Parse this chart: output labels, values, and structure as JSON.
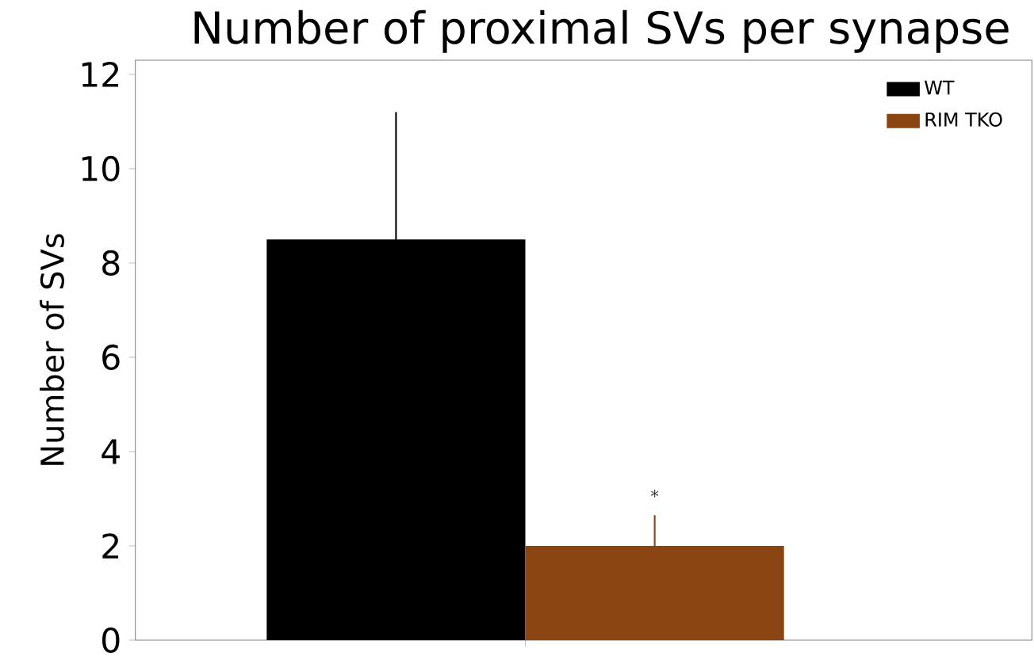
{
  "chart_data": {
    "type": "bar",
    "title": "Number of proximal SVs per synapse",
    "ylabel": "Number of SVs",
    "categories": [
      null
    ],
    "series": [
      {
        "name": "WT",
        "color": "#000000",
        "values": [
          8.5
        ],
        "errors": [
          2.7
        ]
      },
      {
        "name": "RIM TKO",
        "color": "#8b4513",
        "values": [
          2.0
        ],
        "errors": [
          0.65
        ]
      }
    ],
    "ylim": [
      0,
      12.3
    ],
    "yticks": [
      0,
      2,
      4,
      6,
      8,
      10,
      12
    ],
    "annotations": [
      "*"
    ],
    "legend": "top right",
    "tick_labels": "y"
  }
}
